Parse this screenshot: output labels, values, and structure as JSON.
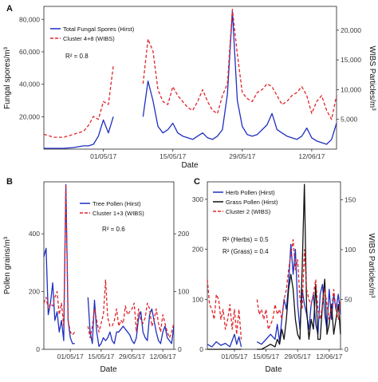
{
  "figure": {
    "panels": [
      {
        "id": "A",
        "letter": "A",
        "xlabel": "Date",
        "ylabel_left": "Fungal spores/m³",
        "ylabel_right": "WIBS Particles/m³",
        "annotation": "R² = 0.8",
        "legend": [
          "Total Fungal Spores (Hirst)",
          "Cluster 4+8 (WIBS)"
        ]
      },
      {
        "id": "B",
        "letter": "B",
        "xlabel": "Date",
        "ylabel_left": "Pollen grains/m³",
        "ylabel_right": "",
        "annotation": "R² = 0.6",
        "legend": [
          "Tree Pollen (Hirst)",
          "Cluster 1+3 (WIBS)"
        ]
      },
      {
        "id": "C",
        "letter": "C",
        "xlabel": "Date",
        "ylabel_left": "",
        "ylabel_right": "WIBS Particles/m³",
        "annotation": [
          "R² (Herbs) = 0.5",
          "R² (Grass) = 0.4"
        ],
        "legend": [
          "Herb Pollen (Hirst)",
          "Grass Pollen (Hirst)",
          "Cluster 2 (WIBS)"
        ]
      }
    ]
  },
  "chart_data": [
    {
      "panel": "A",
      "type": "line",
      "xlabel": "Date",
      "ylabel": "Fungal spores/m³",
      "y2label": "WIBS Particles/m³",
      "x_ticks": [
        "01/05/17",
        "15/05/17",
        "29/05/17",
        "12/06/17"
      ],
      "x_tick_day": [
        12,
        26,
        40,
        54
      ],
      "x_range_day": [
        0,
        59
      ],
      "y_ticks": [
        20000,
        40000,
        60000,
        80000
      ],
      "y_tick_labels": [
        "20,000",
        "40,000",
        "60,000",
        "80,000"
      ],
      "ylim": [
        0,
        88000
      ],
      "y2_ticks": [
        5000,
        10000,
        15000,
        20000
      ],
      "y2_tick_labels": [
        "5,000",
        "10,000",
        "15,000",
        "20,000"
      ],
      "y2lim": [
        0,
        24000
      ],
      "series": [
        {
          "name": "Total Fungal Spores (Hirst)",
          "axis": "left",
          "color": "#1f2fbf",
          "dash": "solid",
          "x": [
            0,
            2,
            4,
            6,
            8,
            9,
            10,
            11,
            12,
            13,
            14,
            null,
            20,
            21,
            22,
            23,
            24,
            25,
            26,
            27,
            28,
            29,
            30,
            31,
            32,
            33,
            34,
            35,
            36,
            37,
            38,
            39,
            40,
            41,
            42,
            43,
            44,
            45,
            46,
            47,
            48,
            49,
            50,
            51,
            52,
            53,
            54,
            55,
            56,
            57,
            58,
            59
          ],
          "y": [
            500,
            500,
            500,
            1000,
            2000,
            2000,
            3000,
            8000,
            18000,
            10000,
            20000,
            null,
            20000,
            42000,
            30000,
            14000,
            10000,
            12000,
            16000,
            10000,
            8000,
            7000,
            6000,
            8000,
            10000,
            7000,
            6000,
            8000,
            12000,
            34000,
            85000,
            30000,
            14000,
            9000,
            8000,
            9000,
            12000,
            15000,
            22000,
            12000,
            10000,
            8000,
            7000,
            6000,
            8000,
            13000,
            7000,
            5000,
            4000,
            3000,
            6000,
            16000
          ]
        },
        {
          "name": "Cluster 4+8 (WIBS)",
          "axis": "right",
          "color": "#e0242a",
          "dash": "dashed",
          "x": [
            0,
            2,
            4,
            6,
            8,
            9,
            10,
            11,
            12,
            13,
            14,
            null,
            20,
            21,
            22,
            23,
            24,
            25,
            26,
            27,
            28,
            29,
            30,
            31,
            32,
            33,
            34,
            35,
            36,
            37,
            38,
            39,
            40,
            41,
            42,
            43,
            44,
            45,
            46,
            47,
            48,
            49,
            50,
            51,
            52,
            53,
            54,
            55,
            56,
            57,
            58,
            59
          ],
          "y": [
            2500,
            2000,
            2000,
            2500,
            3000,
            4000,
            5500,
            5000,
            8000,
            7500,
            14000,
            null,
            11000,
            18500,
            16500,
            10000,
            8000,
            7500,
            10500,
            9000,
            8000,
            7000,
            6500,
            8000,
            10000,
            8000,
            6500,
            6000,
            9000,
            11000,
            23500,
            16000,
            9500,
            8500,
            8000,
            9500,
            10000,
            11000,
            10500,
            9000,
            7500,
            8000,
            9000,
            9500,
            10500,
            9000,
            6000,
            8000,
            9000,
            6500,
            5000,
            9000
          ]
        }
      ]
    },
    {
      "panel": "B",
      "type": "line",
      "xlabel": "Date",
      "ylabel": "Pollen grains/m³",
      "x_ticks": [
        "01/05/17",
        "15/05/17",
        "29/05/17",
        "12/06/17"
      ],
      "x_tick_day": [
        12,
        26,
        40,
        54
      ],
      "x_range_day": [
        0,
        59
      ],
      "y_ticks": [
        0,
        200,
        400
      ],
      "ylim": [
        0,
        580
      ],
      "y2_ticks": [
        0,
        100,
        200
      ],
      "y2lim": [
        0,
        290
      ],
      "series": [
        {
          "name": "Tree Pollen (Hirst)",
          "axis": "left",
          "color": "#1f2fbf",
          "dash": "solid",
          "x": [
            0,
            1,
            2,
            3,
            4,
            5,
            6,
            7,
            8,
            9,
            10,
            11,
            12,
            13,
            14,
            null,
            20,
            21,
            22,
            23,
            24,
            25,
            26,
            27,
            28,
            29,
            30,
            31,
            32,
            33,
            34,
            35,
            36,
            37,
            38,
            39,
            40,
            41,
            42,
            43,
            44,
            45,
            46,
            47,
            48,
            49,
            50,
            51,
            52,
            53,
            54,
            55,
            56,
            57,
            58,
            59
          ],
          "y": [
            320,
            350,
            120,
            160,
            230,
            100,
            130,
            60,
            100,
            30,
            570,
            100,
            40,
            20,
            20,
            null,
            180,
            60,
            20,
            170,
            60,
            10,
            20,
            40,
            30,
            40,
            60,
            30,
            20,
            60,
            60,
            70,
            80,
            70,
            60,
            50,
            30,
            20,
            40,
            110,
            130,
            60,
            40,
            30,
            120,
            140,
            100,
            60,
            30,
            20,
            60,
            80,
            40,
            30,
            20,
            80
          ]
        },
        {
          "name": "Cluster 1+3 (WIBS)",
          "axis": "right",
          "color": "#e0242a",
          "dash": "dashed",
          "x": [
            0,
            1,
            2,
            3,
            4,
            5,
            6,
            7,
            8,
            9,
            10,
            11,
            12,
            13,
            14,
            null,
            20,
            21,
            22,
            23,
            24,
            25,
            26,
            27,
            28,
            29,
            30,
            31,
            32,
            33,
            34,
            35,
            36,
            37,
            38,
            39,
            40,
            41,
            42,
            43,
            44,
            45,
            46,
            47,
            48,
            49,
            50,
            51,
            52,
            53,
            54,
            55,
            56,
            57,
            58,
            59
          ],
          "y": [
            80,
            90,
            70,
            80,
            75,
            90,
            100,
            60,
            80,
            40,
            285,
            50,
            30,
            25,
            30,
            null,
            40,
            20,
            40,
            70,
            50,
            30,
            45,
            60,
            120,
            55,
            40,
            40,
            50,
            70,
            40,
            50,
            45,
            75,
            60,
            65,
            70,
            80,
            30,
            70,
            50,
            45,
            55,
            80,
            70,
            40,
            50,
            70,
            45,
            30,
            60,
            45,
            30,
            20,
            30,
            45
          ]
        }
      ]
    },
    {
      "panel": "C",
      "type": "line",
      "xlabel": "Date",
      "y2label": "WIBS Particles/m³",
      "x_ticks": [
        "01/05/17",
        "15/05/17",
        "29/05/17",
        "12/06/17"
      ],
      "x_tick_day": [
        12,
        26,
        40,
        54
      ],
      "x_range_day": [
        0,
        59
      ],
      "y_ticks": [
        0,
        100,
        200,
        300
      ],
      "ylim": [
        0,
        335
      ],
      "y2_ticks": [
        0,
        50,
        100,
        150
      ],
      "y2lim": [
        0,
        168
      ],
      "series": [
        {
          "name": "Herb Pollen (Hirst)",
          "axis": "left",
          "color": "#1f2fbf",
          "dash": "solid",
          "x": [
            0,
            2,
            4,
            6,
            8,
            10,
            12,
            13,
            14,
            15,
            null,
            22,
            24,
            26,
            28,
            30,
            31,
            32,
            33,
            34,
            35,
            36,
            37,
            38,
            39,
            40,
            41,
            42,
            43,
            44,
            45,
            46,
            47,
            48,
            49,
            50,
            51,
            52,
            53,
            54,
            55,
            56,
            57,
            58,
            59
          ],
          "y": [
            10,
            5,
            15,
            8,
            12,
            5,
            30,
            10,
            25,
            5,
            null,
            15,
            10,
            20,
            30,
            20,
            50,
            15,
            60,
            100,
            80,
            130,
            210,
            150,
            200,
            90,
            40,
            120,
            90,
            70,
            40,
            90,
            110,
            50,
            30,
            110,
            130,
            70,
            40,
            120,
            60,
            110,
            80,
            110,
            70
          ]
        },
        {
          "name": "Grass Pollen (Hirst)",
          "axis": "left",
          "color": "#111111",
          "dash": "solid",
          "x": [
            0,
            2,
            4,
            6,
            8,
            10,
            12,
            13,
            14,
            15,
            null,
            22,
            24,
            26,
            28,
            30,
            31,
            32,
            33,
            34,
            35,
            36,
            37,
            38,
            39,
            40,
            41,
            42,
            43,
            44,
            45,
            46,
            47,
            48,
            49,
            50,
            51,
            52,
            53,
            54,
            55,
            56,
            57,
            58,
            59
          ],
          "y": [
            0,
            0,
            0,
            0,
            0,
            0,
            0,
            0,
            0,
            0,
            null,
            0,
            0,
            5,
            10,
            5,
            20,
            10,
            40,
            20,
            60,
            120,
            150,
            120,
            60,
            30,
            20,
            160,
            330,
            80,
            20,
            60,
            40,
            130,
            20,
            20,
            90,
            140,
            30,
            50,
            90,
            30,
            60,
            90,
            30
          ]
        },
        {
          "name": "Cluster 2 (WIBS)",
          "axis": "right",
          "color": "#e0242a",
          "dash": "dashed",
          "x": [
            0,
            1,
            2,
            3,
            4,
            5,
            6,
            7,
            8,
            9,
            10,
            11,
            12,
            13,
            14,
            15,
            null,
            22,
            23,
            24,
            25,
            26,
            27,
            28,
            29,
            30,
            31,
            32,
            33,
            34,
            35,
            36,
            37,
            38,
            39,
            40,
            41,
            42,
            43,
            44,
            45,
            46,
            47,
            48,
            49,
            50,
            51,
            52,
            53,
            54,
            55,
            56,
            57,
            58,
            59
          ],
          "y": [
            70,
            45,
            40,
            30,
            55,
            50,
            30,
            40,
            20,
            30,
            45,
            20,
            40,
            15,
            40,
            10,
            null,
            50,
            35,
            40,
            30,
            40,
            20,
            25,
            30,
            45,
            35,
            40,
            30,
            50,
            60,
            80,
            95,
            110,
            80,
            90,
            50,
            40,
            100,
            60,
            50,
            45,
            55,
            70,
            40,
            30,
            45,
            60,
            45,
            30,
            40,
            60,
            40,
            30,
            50
          ]
        }
      ]
    }
  ]
}
